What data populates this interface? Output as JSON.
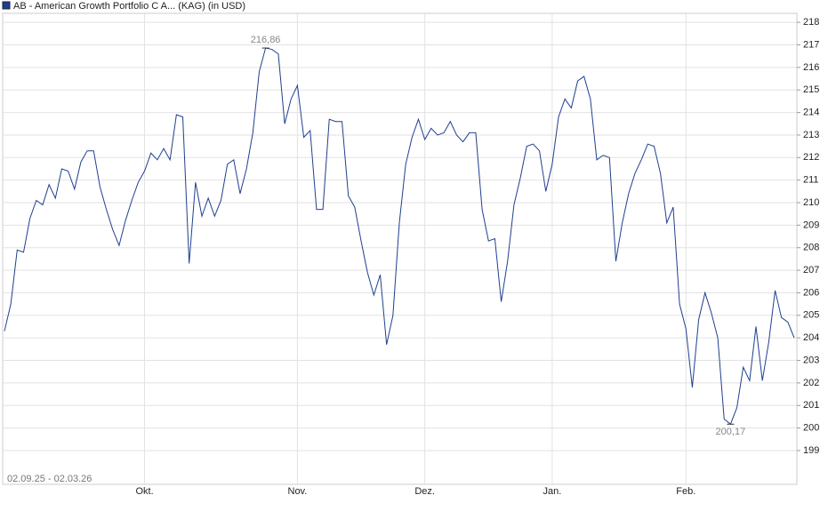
{
  "chart_data": {
    "type": "line",
    "subtitle": "02.09.25 - 02.03.26",
    "categories": [
      null,
      null,
      null,
      null,
      null,
      null,
      null,
      null,
      null,
      null,
      null,
      null,
      null,
      null,
      null,
      null,
      null,
      null,
      null,
      null,
      null,
      null,
      "Okt.",
      null,
      null,
      null,
      null,
      null,
      null,
      null,
      null,
      null,
      null,
      null,
      null,
      null,
      null,
      null,
      null,
      null,
      null,
      null,
      null,
      null,
      null,
      null,
      "Nov.",
      null,
      null,
      null,
      null,
      null,
      null,
      null,
      null,
      null,
      null,
      null,
      null,
      null,
      null,
      null,
      null,
      null,
      null,
      null,
      "Dez.",
      null,
      null,
      null,
      null,
      null,
      null,
      null,
      null,
      null,
      null,
      null,
      null,
      null,
      null,
      null,
      null,
      null,
      null,
      null,
      "Jan.",
      null,
      null,
      null,
      null,
      null,
      null,
      null,
      null,
      null,
      null,
      null,
      null,
      null,
      null,
      null,
      null,
      null,
      null,
      null,
      null,
      "Feb.",
      null,
      null,
      null,
      null,
      null,
      null,
      null,
      null,
      null,
      null,
      null,
      null,
      null,
      null,
      null,
      null,
      null
    ],
    "series": [
      {
        "name": "AB - American Growth Portfolio C A... (KAG) (in USD)",
        "color": "#1f3f8f",
        "values": [
          204.3,
          205.5,
          207.9,
          207.8,
          209.3,
          210.1,
          209.9,
          210.8,
          210.2,
          211.5,
          211.4,
          210.6,
          211.8,
          212.3,
          212.3,
          210.7,
          209.7,
          208.8,
          208.1,
          209.2,
          210.1,
          210.9,
          211.4,
          212.2,
          211.9,
          212.4,
          211.9,
          213.9,
          213.8,
          207.3,
          210.9,
          209.4,
          210.2,
          209.4,
          210.1,
          211.7,
          211.9,
          210.4,
          211.5,
          213.1,
          215.8,
          216.86,
          216.8,
          216.6,
          213.5,
          214.6,
          215.2,
          212.9,
          213.2,
          209.7,
          209.7,
          213.7,
          213.6,
          213.6,
          210.3,
          209.8,
          208.3,
          206.9,
          205.9,
          206.8,
          203.7,
          205.0,
          209.1,
          211.7,
          212.9,
          213.7,
          212.8,
          213.3,
          213.0,
          213.1,
          213.6,
          213.0,
          212.7,
          213.1,
          213.1,
          209.7,
          208.3,
          208.4,
          205.6,
          207.4,
          209.9,
          211.1,
          212.5,
          212.6,
          212.3,
          210.5,
          211.7,
          213.8,
          214.6,
          214.2,
          215.4,
          215.6,
          214.6,
          211.9,
          212.1,
          212.0,
          207.4,
          209.1,
          210.4,
          211.3,
          211.9,
          212.6,
          212.5,
          211.3,
          209.1,
          209.8,
          205.5,
          204.4,
          201.8,
          204.8,
          206.0,
          205.1,
          204.0,
          200.4,
          200.17,
          200.9,
          202.7,
          202.1,
          204.5,
          202.1,
          203.8,
          206.1,
          204.9,
          204.7,
          204.0
        ],
        "value_labels": [
          null,
          null,
          null,
          null,
          null,
          null,
          null,
          null,
          null,
          null,
          null,
          null,
          null,
          null,
          null,
          null,
          null,
          null,
          null,
          null,
          null,
          null,
          null,
          null,
          null,
          null,
          null,
          null,
          null,
          null,
          null,
          null,
          null,
          null,
          null,
          null,
          null,
          null,
          null,
          null,
          null,
          "216,86",
          null,
          null,
          null,
          null,
          null,
          null,
          null,
          null,
          null,
          null,
          null,
          null,
          null,
          null,
          null,
          null,
          null,
          null,
          null,
          null,
          null,
          null,
          null,
          null,
          null,
          null,
          null,
          null,
          null,
          null,
          null,
          null,
          null,
          null,
          null,
          null,
          null,
          null,
          null,
          null,
          null,
          null,
          null,
          null,
          null,
          null,
          null,
          null,
          null,
          null,
          null,
          null,
          null,
          null,
          null,
          null,
          null,
          null,
          null,
          null,
          null,
          null,
          null,
          null,
          null,
          null,
          null,
          null,
          null,
          null,
          null,
          null,
          "200,17",
          null,
          null,
          null,
          null,
          null,
          null,
          null,
          null,
          null,
          null
        ]
      }
    ],
    "ylim": [
      197.5,
      218.4
    ],
    "yticks": [
      199,
      200,
      201,
      202,
      203,
      204,
      205,
      206,
      207,
      208,
      209,
      210,
      211,
      212,
      213,
      214,
      215,
      216,
      217,
      218
    ],
    "grid": true,
    "legend": "top-left"
  }
}
